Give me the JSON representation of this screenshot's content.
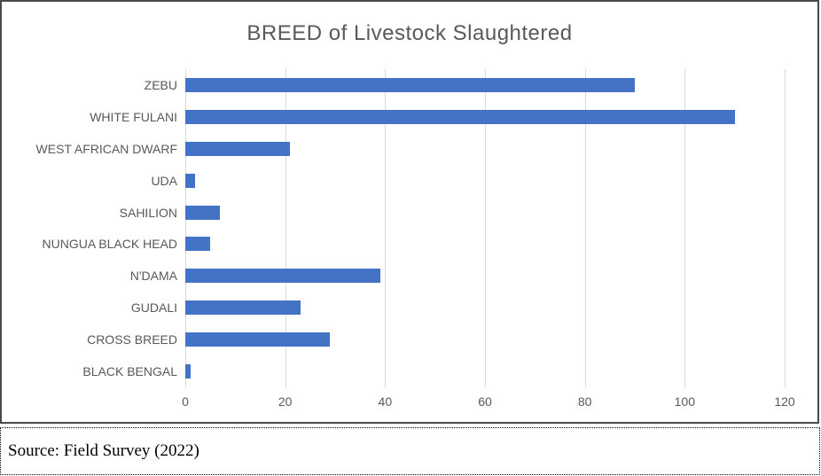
{
  "chart_data": {
    "type": "bar",
    "orientation": "horizontal",
    "title": "BREED of Livestock Slaughtered",
    "categories": [
      "ZEBU",
      "WHITE FULANI",
      "WEST AFRICAN DWARF",
      "UDA",
      "SAHILION",
      "NUNGUA BLACK HEAD",
      "N'DAMA",
      "GUDALI",
      "CROSS BREED",
      "BLACK BENGAL"
    ],
    "values": [
      90,
      110,
      21,
      2,
      7,
      5,
      39,
      23,
      29,
      1
    ],
    "xlabel": "",
    "ylabel": "",
    "xlim": [
      0,
      120
    ],
    "xticks": [
      0,
      20,
      40,
      60,
      80,
      100,
      120
    ],
    "grid": true,
    "legend": false,
    "bar_color": "#4472c4"
  },
  "source_note": {
    "text": "Source: Field Survey (2022)"
  },
  "colors": {
    "bar": "#4472c4",
    "gridline": "#d9d9d9",
    "axis_text": "#595959",
    "title_text": "#595959",
    "chart_border": "#4a4a4a",
    "source_border": "#000000",
    "background": "#ffffff"
  }
}
